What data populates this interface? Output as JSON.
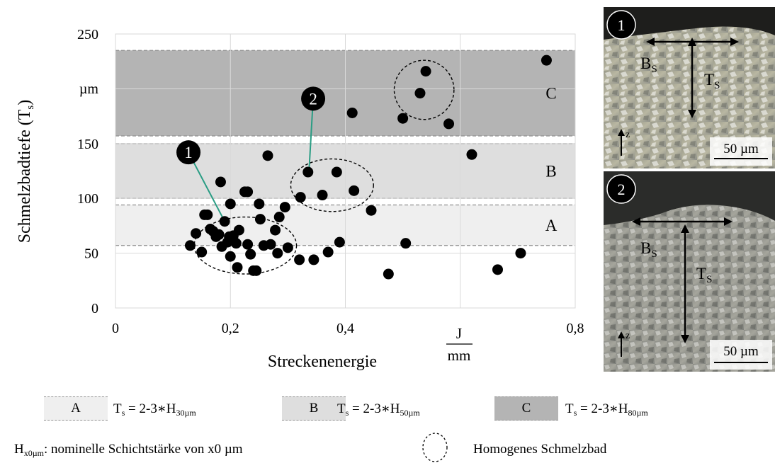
{
  "chart_data": {
    "type": "scatter",
    "xlabel": "Streckenenergie",
    "xunit_num": "J",
    "xunit_den": "mm",
    "ylabel": "Schmelzbadtiefe (T",
    "ylabel_sub": "s",
    "ylabel_end": ")",
    "yunit": "µm",
    "xlim": [
      0,
      0.8
    ],
    "ylim": [
      0,
      250
    ],
    "x_ticks": [
      "0",
      "0,2",
      "0,4",
      "0,8"
    ],
    "x_tick_values": [
      0,
      0.2,
      0.4,
      0.8
    ],
    "y_ticks": [
      "0",
      "50",
      "100",
      "150",
      "250"
    ],
    "y_tick_values": [
      0,
      50,
      100,
      150,
      250
    ],
    "grid": true,
    "bands": [
      {
        "label": "A",
        "y_from": 57,
        "y_to": 94,
        "color": "#efefef"
      },
      {
        "label": "B",
        "y_from": 100,
        "y_to": 150,
        "color": "#dedede"
      },
      {
        "label": "C",
        "y_from": 157,
        "y_to": 235,
        "color": "#b4b4b4"
      }
    ],
    "points": [
      {
        "x": 0.13,
        "y": 57
      },
      {
        "x": 0.14,
        "y": 68
      },
      {
        "x": 0.15,
        "y": 51
      },
      {
        "x": 0.155,
        "y": 85
      },
      {
        "x": 0.16,
        "y": 85
      },
      {
        "x": 0.165,
        "y": 72
      },
      {
        "x": 0.17,
        "y": 70
      },
      {
        "x": 0.175,
        "y": 65
      },
      {
        "x": 0.18,
        "y": 67
      },
      {
        "x": 0.183,
        "y": 115
      },
      {
        "x": 0.185,
        "y": 56
      },
      {
        "x": 0.19,
        "y": 79
      },
      {
        "x": 0.195,
        "y": 60
      },
      {
        "x": 0.198,
        "y": 65
      },
      {
        "x": 0.2,
        "y": 47
      },
      {
        "x": 0.2,
        "y": 95
      },
      {
        "x": 0.205,
        "y": 66
      },
      {
        "x": 0.21,
        "y": 59
      },
      {
        "x": 0.212,
        "y": 37
      },
      {
        "x": 0.215,
        "y": 71
      },
      {
        "x": 0.225,
        "y": 106
      },
      {
        "x": 0.23,
        "y": 106
      },
      {
        "x": 0.23,
        "y": 58
      },
      {
        "x": 0.235,
        "y": 49
      },
      {
        "x": 0.24,
        "y": 34
      },
      {
        "x": 0.245,
        "y": 34
      },
      {
        "x": 0.25,
        "y": 95
      },
      {
        "x": 0.252,
        "y": 81
      },
      {
        "x": 0.258,
        "y": 57
      },
      {
        "x": 0.265,
        "y": 139
      },
      {
        "x": 0.27,
        "y": 58
      },
      {
        "x": 0.278,
        "y": 71
      },
      {
        "x": 0.282,
        "y": 50
      },
      {
        "x": 0.285,
        "y": 83
      },
      {
        "x": 0.295,
        "y": 92
      },
      {
        "x": 0.3,
        "y": 55
      },
      {
        "x": 0.32,
        "y": 44
      },
      {
        "x": 0.322,
        "y": 101
      },
      {
        "x": 0.335,
        "y": 124
      },
      {
        "x": 0.345,
        "y": 44
      },
      {
        "x": 0.36,
        "y": 103
      },
      {
        "x": 0.37,
        "y": 51
      },
      {
        "x": 0.385,
        "y": 124
      },
      {
        "x": 0.39,
        "y": 60
      },
      {
        "x": 0.412,
        "y": 178
      },
      {
        "x": 0.415,
        "y": 107
      },
      {
        "x": 0.445,
        "y": 89
      },
      {
        "x": 0.475,
        "y": 31
      },
      {
        "x": 0.5,
        "y": 173
      },
      {
        "x": 0.505,
        "y": 59
      },
      {
        "x": 0.53,
        "y": 196
      },
      {
        "x": 0.54,
        "y": 216
      },
      {
        "x": 0.58,
        "y": 168
      },
      {
        "x": 0.62,
        "y": 140
      },
      {
        "x": 0.665,
        "y": 35
      },
      {
        "x": 0.705,
        "y": 50
      },
      {
        "x": 0.75,
        "y": 226
      }
    ],
    "ellipses": [
      {
        "cx": 0.226,
        "cy": 57,
        "rx": 0.089,
        "ry": 26
      },
      {
        "cx": 0.377,
        "cy": 112,
        "rx": 0.072,
        "ry": 24
      },
      {
        "cx": 0.537,
        "cy": 199,
        "rx": 0.052,
        "ry": 27
      }
    ],
    "markers": [
      {
        "label": "1",
        "x": 0.127,
        "y": 142,
        "to_x": 0.19,
        "to_y": 79
      },
      {
        "label": "2",
        "x": 0.344,
        "y": 191,
        "to_x": 0.337,
        "to_y": 127
      }
    ]
  },
  "photos": [
    {
      "label": "1",
      "b_label": "B",
      "t_label": "T",
      "sub": "S",
      "z_label": "z",
      "scale_label": "50 µm"
    },
    {
      "label": "2",
      "b_label": "B",
      "t_label": "T",
      "sub": "S",
      "z_label": "z",
      "scale_label": "50 µm"
    }
  ],
  "legend": {
    "items": [
      {
        "key": "A",
        "text": "T",
        "text_sub": "s",
        "formula": " = 2-3∗H",
        "formula_sub": "30µm",
        "color": "#efefef"
      },
      {
        "key": "B",
        "text": "T",
        "text_sub": "s",
        "formula": " = 2-3∗H",
        "formula_sub": "50µm",
        "color": "#dedede"
      },
      {
        "key": "C",
        "text": "T",
        "text_sub": "s",
        "formula": " = 2-3∗H",
        "formula_sub": "80µm",
        "color": "#b4b4b4"
      }
    ],
    "h_label": "H",
    "h_sub": "x0µm",
    "h_text": ": nominelle Schichtstärke von x0 µm",
    "ellipse_text": "Homogenes Schmelzbad"
  }
}
